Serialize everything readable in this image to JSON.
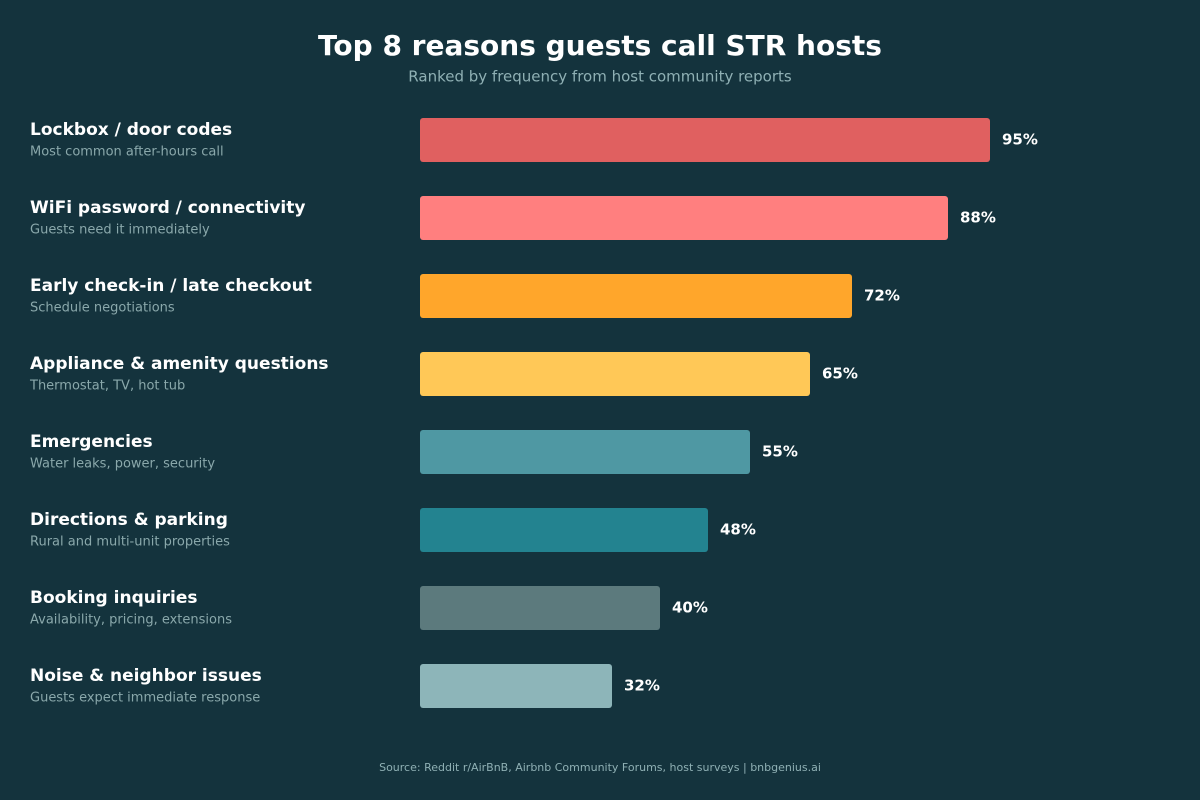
{
  "chart_data": {
    "type": "bar",
    "orientation": "horizontal",
    "title": "Top 8 reasons guests call STR hosts",
    "subtitle": "Ranked by frequency from host community reports",
    "categories": [
      "Lockbox / door codes",
      "WiFi password / connectivity",
      "Early check-in / late checkout",
      "Appliance & amenity questions",
      "Emergencies",
      "Directions & parking",
      "Booking inquiries",
      "Noise & neighbor issues"
    ],
    "descriptions": [
      "Most common after-hours call",
      "Guests need it immediately",
      "Schedule negotiations",
      "Thermostat, TV, hot tub",
      "Water leaks, power, security",
      "Rural and multi-unit properties",
      "Availability, pricing, extensions",
      "Guests expect immediate response"
    ],
    "values": [
      95,
      88,
      72,
      65,
      55,
      48,
      40,
      32
    ],
    "value_labels": [
      "95%",
      "88%",
      "72%",
      "65%",
      "55%",
      "48%",
      "40%",
      "32%"
    ],
    "colors": [
      "#e06060",
      "#ff7f7f",
      "#ffa62b",
      "#ffc857",
      "#4f98a3",
      "#238390",
      "#5c7a7d",
      "#8db5b9"
    ],
    "xlim": [
      0,
      100
    ],
    "source": "Source: Reddit r/AirBnB, Airbnb Community Forums, host surveys | bnbgenius.ai"
  }
}
